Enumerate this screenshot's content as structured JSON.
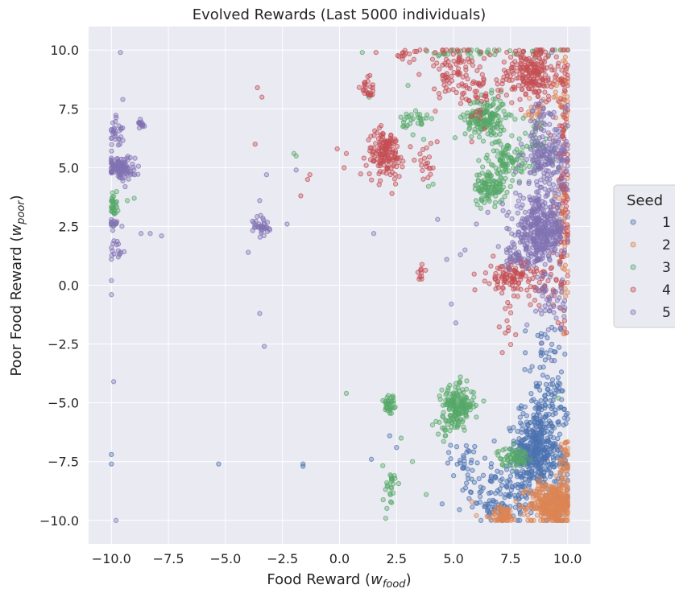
{
  "chart_data": {
    "type": "scatter",
    "title": "Evolved Rewards (Last 5000 individuals)",
    "xlabel_main": "Food Reward (",
    "xlabel_var": "w",
    "xlabel_sub": "food",
    "xlabel_end": ")",
    "ylabel_main": "Poor Food Reward (",
    "ylabel_var": "w",
    "ylabel_sub": "poor",
    "ylabel_end": ")",
    "xlim": [
      -11,
      11
    ],
    "ylim": [
      -11,
      11
    ],
    "xticks": [
      -10,
      -7.5,
      -5,
      -2.5,
      0,
      2.5,
      5,
      7.5,
      10
    ],
    "xtick_labels": [
      "−10.0",
      "−7.5",
      "−5.0",
      "−2.5",
      "0.0",
      "2.5",
      "5.0",
      "7.5",
      "10.0"
    ],
    "yticks": [
      10,
      7.5,
      5,
      2.5,
      0,
      -2.5,
      -5,
      -7.5,
      -10
    ],
    "ytick_labels": [
      "10.0",
      "7.5",
      "5.0",
      "2.5",
      "0.0",
      "−2.5",
      "−5.0",
      "−7.5",
      "−10.0"
    ],
    "grid": true,
    "legend": {
      "title": "Seed",
      "placement": "outside-right"
    },
    "series": [
      {
        "name": "1",
        "color": "#4c72b0",
        "clusters": [
          {
            "cx": 8.6,
            "cy": -7.0,
            "sx": 0.45,
            "sy": 0.8,
            "n": 360
          },
          {
            "cx": 9.0,
            "cy": -5.0,
            "sx": 0.5,
            "sy": 0.6,
            "n": 80
          },
          {
            "cx": 7.8,
            "cy": -8.8,
            "sx": 0.7,
            "sy": 0.6,
            "n": 90
          },
          {
            "cx": 6.3,
            "cy": -8.6,
            "sx": 0.5,
            "sy": 0.5,
            "n": 40
          },
          {
            "cx": 9.7,
            "cy": -7.5,
            "sx": 0.2,
            "sy": 1.5,
            "n": 60
          },
          {
            "cx": 5.5,
            "cy": -7.3,
            "sx": 0.3,
            "sy": 0.3,
            "n": 25
          },
          {
            "cx": 8.9,
            "cy": -3.0,
            "sx": 0.4,
            "sy": 0.7,
            "n": 30
          },
          {
            "cx": 6.7,
            "cy": -9.6,
            "sx": 0.3,
            "sy": 0.3,
            "n": 20
          }
        ],
        "points": [
          [
            -10.0,
            -7.2
          ],
          [
            -10.0,
            -7.6
          ],
          [
            -5.3,
            -7.6
          ],
          [
            -1.6,
            -7.6
          ],
          [
            -1.6,
            -7.7
          ],
          [
            1.4,
            -7.4
          ],
          [
            2.2,
            -6.4
          ],
          [
            4.5,
            -9.3
          ],
          [
            6.2,
            -10.0
          ],
          [
            5.0,
            -8.1
          ],
          [
            2.5,
            -6.9
          ]
        ]
      },
      {
        "name": "2",
        "color": "#dd8452",
        "clusters": [
          {
            "cx": 9.3,
            "cy": -9.3,
            "sx": 0.5,
            "sy": 0.45,
            "n": 320
          },
          {
            "cx": 7.2,
            "cy": -9.8,
            "sx": 0.3,
            "sy": 0.2,
            "n": 60
          },
          {
            "cx": 9.9,
            "cy": -8.0,
            "sx": 0.15,
            "sy": 0.8,
            "n": 50
          },
          {
            "cx": 9.8,
            "cy": 8.5,
            "sx": 0.2,
            "sy": 1.0,
            "n": 40
          },
          {
            "cx": 8.5,
            "cy": 7.3,
            "sx": 0.3,
            "sy": 0.3,
            "n": 20
          },
          {
            "cx": 9.8,
            "cy": 3.0,
            "sx": 0.2,
            "sy": 1.0,
            "n": 30
          },
          {
            "cx": 9.9,
            "cy": 0.0,
            "sx": 0.1,
            "sy": 1.0,
            "n": 15
          }
        ],
        "points": [
          [
            6.0,
            -9.8
          ],
          [
            5.8,
            -9.2
          ],
          [
            6.6,
            -9.9
          ]
        ]
      },
      {
        "name": "3",
        "color": "#55a868",
        "clusters": [
          {
            "cx": 5.2,
            "cy": -5.1,
            "sx": 0.35,
            "sy": 0.4,
            "n": 170
          },
          {
            "cx": 6.4,
            "cy": 7.1,
            "sx": 0.45,
            "sy": 0.45,
            "n": 170
          },
          {
            "cx": 6.6,
            "cy": 4.2,
            "sx": 0.35,
            "sy": 0.35,
            "n": 110
          },
          {
            "cx": 7.3,
            "cy": 5.4,
            "sx": 0.4,
            "sy": 0.4,
            "n": 80
          },
          {
            "cx": 7.6,
            "cy": -7.3,
            "sx": 0.35,
            "sy": 0.2,
            "n": 60
          },
          {
            "cx": 2.2,
            "cy": -5.1,
            "sx": 0.15,
            "sy": 0.3,
            "n": 35
          },
          {
            "cx": 3.3,
            "cy": 7.0,
            "sx": 0.3,
            "sy": 0.3,
            "n": 30
          },
          {
            "cx": 2.2,
            "cy": -8.6,
            "sx": 0.15,
            "sy": 0.5,
            "n": 25
          },
          {
            "cx": 6.7,
            "cy": 9.9,
            "sx": 1.5,
            "sy": 0.1,
            "n": 40
          },
          {
            "cx": -9.9,
            "cy": 3.4,
            "sx": 0.08,
            "sy": 0.3,
            "n": 30
          },
          {
            "cx": 4.8,
            "cy": -5.9,
            "sx": 0.3,
            "sy": 0.3,
            "n": 20
          },
          {
            "cx": 8.7,
            "cy": 6.0,
            "sx": 0.5,
            "sy": 0.6,
            "n": 40
          }
        ],
        "points": [
          [
            -9.3,
            3.6
          ],
          [
            -9.0,
            3.7
          ],
          [
            -2.0,
            5.6
          ],
          [
            -1.9,
            5.5
          ],
          [
            0.3,
            -4.6
          ],
          [
            1.0,
            9.9
          ],
          [
            2.7,
            -6.5
          ],
          [
            3.2,
            -7.5
          ],
          [
            3.8,
            -8.9
          ],
          [
            3.9,
            4.2
          ],
          [
            4.1,
            4.3
          ],
          [
            1.3,
            8.0
          ],
          [
            3.0,
            8.5
          ],
          [
            5.3,
            -3.9
          ],
          [
            9.6,
            -4.8
          ]
        ]
      },
      {
        "name": "4",
        "color": "#c44e52",
        "clusters": [
          {
            "cx": 2.0,
            "cy": 5.6,
            "sx": 0.4,
            "sy": 0.5,
            "n": 150
          },
          {
            "cx": 8.4,
            "cy": 9.0,
            "sx": 0.7,
            "sy": 0.6,
            "n": 220
          },
          {
            "cx": 7.6,
            "cy": 0.4,
            "sx": 0.55,
            "sy": 0.35,
            "n": 110
          },
          {
            "cx": 5.0,
            "cy": 9.2,
            "sx": 0.6,
            "sy": 0.6,
            "n": 80
          },
          {
            "cx": 9.8,
            "cy": 4.0,
            "sx": 0.2,
            "sy": 3.0,
            "n": 100
          },
          {
            "cx": 1.3,
            "cy": 8.4,
            "sx": 0.2,
            "sy": 0.3,
            "n": 25
          },
          {
            "cx": 3.8,
            "cy": 5.2,
            "sx": 0.25,
            "sy": 0.4,
            "n": 20
          },
          {
            "cx": 3.6,
            "cy": 0.5,
            "sx": 0.1,
            "sy": 0.15,
            "n": 10
          },
          {
            "cx": 2.9,
            "cy": 9.8,
            "sx": 0.3,
            "sy": 0.15,
            "n": 15
          },
          {
            "cx": 6.0,
            "cy": 8.2,
            "sx": 0.4,
            "sy": 0.5,
            "n": 40
          },
          {
            "cx": 7.3,
            "cy": -1.8,
            "sx": 0.2,
            "sy": 0.4,
            "n": 12
          },
          {
            "cx": 8.9,
            "cy": -0.2,
            "sx": 0.5,
            "sy": 0.5,
            "n": 30
          }
        ],
        "points": [
          [
            -3.6,
            8.4
          ],
          [
            -3.4,
            8.0
          ],
          [
            -3.7,
            6.0
          ],
          [
            -1.3,
            4.7
          ],
          [
            -1.4,
            4.5
          ],
          [
            -1.7,
            3.8
          ],
          [
            0.2,
            5.0
          ],
          [
            -0.1,
            5.8
          ],
          [
            0.3,
            5.6
          ],
          [
            1.6,
            9.9
          ],
          [
            4.2,
            9.9
          ],
          [
            5.8,
            6.1
          ],
          [
            6.6,
            9.8
          ],
          [
            2.3,
            3.9
          ],
          [
            4.2,
            7.4
          ]
        ]
      },
      {
        "name": "5",
        "color": "#8172b3",
        "clusters": [
          {
            "cx": 8.8,
            "cy": 2.3,
            "sx": 0.55,
            "sy": 0.7,
            "n": 400
          },
          {
            "cx": 9.1,
            "cy": 5.3,
            "sx": 0.5,
            "sy": 0.6,
            "n": 160
          },
          {
            "cx": -9.6,
            "cy": 5.0,
            "sx": 0.3,
            "sy": 0.25,
            "n": 120
          },
          {
            "cx": -9.8,
            "cy": 6.5,
            "sx": 0.15,
            "sy": 0.3,
            "n": 30
          },
          {
            "cx": -8.7,
            "cy": 6.8,
            "sx": 0.1,
            "sy": 0.15,
            "n": 15
          },
          {
            "cx": -3.4,
            "cy": 2.5,
            "sx": 0.2,
            "sy": 0.25,
            "n": 35
          },
          {
            "cx": 9.3,
            "cy": -0.8,
            "sx": 0.3,
            "sy": 0.6,
            "n": 40
          },
          {
            "cx": 7.7,
            "cy": 1.2,
            "sx": 0.3,
            "sy": 0.2,
            "n": 30
          },
          {
            "cx": -9.9,
            "cy": 2.6,
            "sx": 0.2,
            "sy": 0.1,
            "n": 15
          },
          {
            "cx": -9.8,
            "cy": 1.5,
            "sx": 0.2,
            "sy": 0.25,
            "n": 15
          },
          {
            "cx": 9.0,
            "cy": 7.0,
            "sx": 0.5,
            "sy": 0.4,
            "n": 40
          }
        ],
        "points": [
          [
            -9.6,
            9.9
          ],
          [
            -9.5,
            7.9
          ],
          [
            -9.7,
            1.2
          ],
          [
            -10.0,
            0.2
          ],
          [
            -10.0,
            -0.4
          ],
          [
            -9.9,
            -4.1
          ],
          [
            -9.8,
            -10.0
          ],
          [
            -8.3,
            2.2
          ],
          [
            -8.7,
            2.2
          ],
          [
            -7.8,
            2.1
          ],
          [
            -4.0,
            1.4
          ],
          [
            -3.5,
            3.6
          ],
          [
            -3.5,
            -1.2
          ],
          [
            -3.3,
            -2.6
          ],
          [
            -3.2,
            4.7
          ],
          [
            -2.3,
            2.6
          ],
          [
            -1.9,
            4.9
          ],
          [
            1.5,
            2.2
          ],
          [
            4.9,
            -0.8
          ],
          [
            5.3,
            1.3
          ],
          [
            5.5,
            1.5
          ],
          [
            4.3,
            2.8
          ],
          [
            4.7,
            1.1
          ],
          [
            5.1,
            -1.6
          ],
          [
            6.0,
            2.6
          ],
          [
            9.3,
            -3.2
          ],
          [
            9.5,
            -1.4
          ],
          [
            9.3,
            9.9
          ],
          [
            6.5,
            3.1
          ]
        ]
      }
    ]
  }
}
